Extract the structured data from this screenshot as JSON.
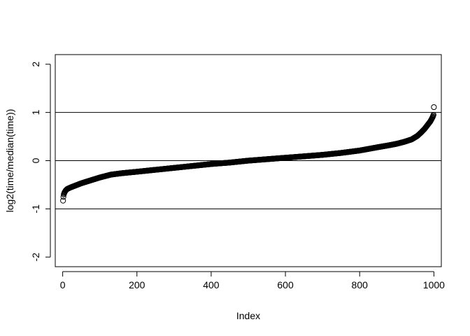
{
  "chart_data": {
    "type": "scatter",
    "title": "",
    "xlabel": "Index",
    "ylabel": "log2(time/median(time))",
    "xlim": [
      -20,
      1020
    ],
    "ylim": [
      -2.2,
      2.2
    ],
    "x_ticks": [
      0,
      200,
      400,
      600,
      800,
      1000
    ],
    "y_ticks": [
      -2,
      -1,
      0,
      1,
      2
    ],
    "x_tick_labels": [
      "0",
      "200",
      "400",
      "600",
      "800",
      "1000"
    ],
    "y_tick_labels": [
      "-2",
      "-1",
      "0",
      "1",
      "2"
    ],
    "reference_lines_y": [
      -1,
      0,
      1
    ],
    "marker": "open-circle",
    "point_color": "#000000",
    "line_color": "#000000",
    "grid": false,
    "legend": "none",
    "n_points": 1000,
    "profile": {
      "x": [
        1,
        2,
        3,
        5,
        8,
        12,
        20,
        30,
        50,
        75,
        100,
        130,
        160,
        200,
        250,
        300,
        350,
        400,
        450,
        500,
        550,
        600,
        650,
        700,
        750,
        800,
        850,
        880,
        900,
        920,
        940,
        955,
        965,
        975,
        985,
        990,
        993,
        995,
        997,
        999,
        1000
      ],
      "y": [
        -0.83,
        -0.75,
        -0.7,
        -0.66,
        -0.62,
        -0.59,
        -0.56,
        -0.53,
        -0.47,
        -0.41,
        -0.35,
        -0.29,
        -0.26,
        -0.23,
        -0.19,
        -0.15,
        -0.11,
        -0.07,
        -0.04,
        0.0,
        0.03,
        0.06,
        0.09,
        0.12,
        0.16,
        0.21,
        0.28,
        0.32,
        0.35,
        0.39,
        0.44,
        0.51,
        0.58,
        0.66,
        0.76,
        0.81,
        0.85,
        0.88,
        0.91,
        0.95,
        1.11
      ]
    }
  }
}
